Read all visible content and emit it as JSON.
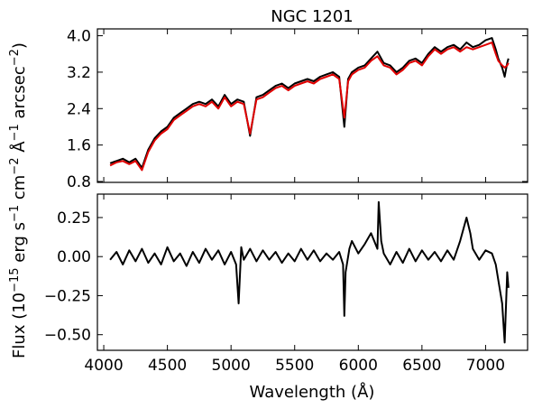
{
  "chart_data": [
    {
      "type": "line",
      "title": "NGC 1201",
      "xlim": [
        3950,
        7330
      ],
      "ylim": [
        0.78,
        4.15
      ],
      "yticks": [
        4.0,
        3.2,
        2.4,
        1.6,
        0.8
      ],
      "ytick_labels": [
        "4.0",
        "3.2",
        "2.4",
        "1.6",
        "0.8"
      ],
      "series": [
        {
          "color": "#000000",
          "points": [
            [
              4050,
              1.2
            ],
            [
              4100,
              1.25
            ],
            [
              4150,
              1.3
            ],
            [
              4200,
              1.22
            ],
            [
              4250,
              1.3
            ],
            [
              4300,
              1.1
            ],
            [
              4350,
              1.5
            ],
            [
              4400,
              1.75
            ],
            [
              4450,
              1.9
            ],
            [
              4500,
              2.0
            ],
            [
              4550,
              2.2
            ],
            [
              4600,
              2.3
            ],
            [
              4650,
              2.4
            ],
            [
              4700,
              2.5
            ],
            [
              4750,
              2.55
            ],
            [
              4800,
              2.5
            ],
            [
              4850,
              2.6
            ],
            [
              4900,
              2.45
            ],
            [
              4950,
              2.7
            ],
            [
              5000,
              2.5
            ],
            [
              5050,
              2.6
            ],
            [
              5100,
              2.55
            ],
            [
              5150,
              1.8
            ],
            [
              5200,
              2.65
            ],
            [
              5250,
              2.7
            ],
            [
              5300,
              2.8
            ],
            [
              5350,
              2.9
            ],
            [
              5400,
              2.95
            ],
            [
              5450,
              2.85
            ],
            [
              5500,
              2.95
            ],
            [
              5550,
              3.0
            ],
            [
              5600,
              3.05
            ],
            [
              5650,
              3.0
            ],
            [
              5700,
              3.1
            ],
            [
              5750,
              3.15
            ],
            [
              5800,
              3.2
            ],
            [
              5850,
              3.1
            ],
            [
              5890,
              2.0
            ],
            [
              5920,
              3.05
            ],
            [
              5950,
              3.2
            ],
            [
              6000,
              3.3
            ],
            [
              6050,
              3.35
            ],
            [
              6100,
              3.5
            ],
            [
              6150,
              3.65
            ],
            [
              6200,
              3.4
            ],
            [
              6250,
              3.35
            ],
            [
              6300,
              3.2
            ],
            [
              6350,
              3.3
            ],
            [
              6400,
              3.45
            ],
            [
              6450,
              3.5
            ],
            [
              6500,
              3.4
            ],
            [
              6550,
              3.6
            ],
            [
              6600,
              3.75
            ],
            [
              6650,
              3.65
            ],
            [
              6700,
              3.75
            ],
            [
              6750,
              3.8
            ],
            [
              6800,
              3.7
            ],
            [
              6850,
              3.85
            ],
            [
              6900,
              3.75
            ],
            [
              6950,
              3.8
            ],
            [
              7000,
              3.9
            ],
            [
              7050,
              3.95
            ],
            [
              7080,
              3.7
            ],
            [
              7100,
              3.5
            ],
            [
              7130,
              3.3
            ],
            [
              7150,
              3.1
            ],
            [
              7170,
              3.4
            ],
            [
              7180,
              3.5
            ]
          ]
        },
        {
          "color": "#e00000",
          "points": [
            [
              4050,
              1.15
            ],
            [
              4100,
              1.22
            ],
            [
              4150,
              1.25
            ],
            [
              4200,
              1.18
            ],
            [
              4250,
              1.25
            ],
            [
              4300,
              1.05
            ],
            [
              4350,
              1.45
            ],
            [
              4400,
              1.7
            ],
            [
              4450,
              1.85
            ],
            [
              4500,
              1.95
            ],
            [
              4550,
              2.15
            ],
            [
              4600,
              2.25
            ],
            [
              4650,
              2.35
            ],
            [
              4700,
              2.45
            ],
            [
              4750,
              2.5
            ],
            [
              4800,
              2.45
            ],
            [
              4850,
              2.55
            ],
            [
              4900,
              2.4
            ],
            [
              4950,
              2.65
            ],
            [
              5000,
              2.45
            ],
            [
              5050,
              2.55
            ],
            [
              5100,
              2.5
            ],
            [
              5150,
              1.85
            ],
            [
              5200,
              2.6
            ],
            [
              5250,
              2.65
            ],
            [
              5300,
              2.75
            ],
            [
              5350,
              2.85
            ],
            [
              5400,
              2.9
            ],
            [
              5450,
              2.8
            ],
            [
              5500,
              2.9
            ],
            [
              5550,
              2.95
            ],
            [
              5600,
              3.0
            ],
            [
              5650,
              2.95
            ],
            [
              5700,
              3.05
            ],
            [
              5750,
              3.1
            ],
            [
              5800,
              3.15
            ],
            [
              5850,
              3.05
            ],
            [
              5890,
              2.2
            ],
            [
              5920,
              3.0
            ],
            [
              5950,
              3.15
            ],
            [
              6000,
              3.25
            ],
            [
              6050,
              3.3
            ],
            [
              6100,
              3.45
            ],
            [
              6150,
              3.55
            ],
            [
              6200,
              3.35
            ],
            [
              6250,
              3.3
            ],
            [
              6300,
              3.15
            ],
            [
              6350,
              3.25
            ],
            [
              6400,
              3.4
            ],
            [
              6450,
              3.45
            ],
            [
              6500,
              3.35
            ],
            [
              6550,
              3.55
            ],
            [
              6600,
              3.7
            ],
            [
              6650,
              3.6
            ],
            [
              6700,
              3.7
            ],
            [
              6750,
              3.75
            ],
            [
              6800,
              3.65
            ],
            [
              6850,
              3.75
            ],
            [
              6900,
              3.7
            ],
            [
              6950,
              3.75
            ],
            [
              7000,
              3.8
            ],
            [
              7050,
              3.85
            ],
            [
              7080,
              3.6
            ],
            [
              7100,
              3.45
            ],
            [
              7130,
              3.35
            ],
            [
              7150,
              3.3
            ],
            [
              7170,
              3.35
            ],
            [
              7180,
              3.4
            ]
          ]
        }
      ]
    },
    {
      "type": "line",
      "title": "",
      "xlabel": "Wavelength ($\\AA$)",
      "xlim": [
        3950,
        7330
      ],
      "ylim": [
        -0.6,
        0.4
      ],
      "xticks": [
        4000,
        4500,
        5000,
        5500,
        6000,
        6500,
        7000
      ],
      "xtick_labels": [
        "4000",
        "4500",
        "5000",
        "5500",
        "6000",
        "6500",
        "7000"
      ],
      "yticks": [
        0.25,
        0.0,
        -0.25,
        -0.5
      ],
      "ytick_labels": [
        "0.25",
        "0.00",
        "−0.25",
        "−0.50"
      ],
      "series": [
        {
          "color": "#000000",
          "points": [
            [
              4050,
              -0.02
            ],
            [
              4100,
              0.03
            ],
            [
              4150,
              -0.05
            ],
            [
              4200,
              0.04
            ],
            [
              4250,
              -0.03
            ],
            [
              4300,
              0.05
            ],
            [
              4350,
              -0.04
            ],
            [
              4400,
              0.02
            ],
            [
              4450,
              -0.05
            ],
            [
              4500,
              0.06
            ],
            [
              4550,
              -0.03
            ],
            [
              4600,
              0.02
            ],
            [
              4650,
              -0.06
            ],
            [
              4700,
              0.03
            ],
            [
              4750,
              -0.04
            ],
            [
              4800,
              0.05
            ],
            [
              4850,
              -0.02
            ],
            [
              4900,
              0.04
            ],
            [
              4950,
              -0.05
            ],
            [
              5000,
              0.03
            ],
            [
              5040,
              -0.05
            ],
            [
              5060,
              -0.3
            ],
            [
              5080,
              0.06
            ],
            [
              5100,
              -0.02
            ],
            [
              5150,
              0.05
            ],
            [
              5200,
              -0.03
            ],
            [
              5250,
              0.04
            ],
            [
              5300,
              -0.02
            ],
            [
              5350,
              0.03
            ],
            [
              5400,
              -0.04
            ],
            [
              5450,
              0.02
            ],
            [
              5500,
              -0.03
            ],
            [
              5550,
              0.05
            ],
            [
              5600,
              -0.02
            ],
            [
              5650,
              0.04
            ],
            [
              5700,
              -0.03
            ],
            [
              5750,
              0.02
            ],
            [
              5800,
              -0.02
            ],
            [
              5850,
              0.03
            ],
            [
              5880,
              -0.05
            ],
            [
              5890,
              -0.38
            ],
            [
              5900,
              -0.1
            ],
            [
              5930,
              0.05
            ],
            [
              5950,
              0.1
            ],
            [
              6000,
              0.02
            ],
            [
              6050,
              0.08
            ],
            [
              6100,
              0.15
            ],
            [
              6150,
              0.05
            ],
            [
              6160,
              0.35
            ],
            [
              6180,
              0.1
            ],
            [
              6200,
              0.02
            ],
            [
              6250,
              -0.05
            ],
            [
              6300,
              0.03
            ],
            [
              6350,
              -0.04
            ],
            [
              6400,
              0.05
            ],
            [
              6450,
              -0.03
            ],
            [
              6500,
              0.04
            ],
            [
              6550,
              -0.02
            ],
            [
              6600,
              0.03
            ],
            [
              6650,
              -0.03
            ],
            [
              6700,
              0.04
            ],
            [
              6750,
              -0.02
            ],
            [
              6800,
              0.1
            ],
            [
              6850,
              0.25
            ],
            [
              6880,
              0.15
            ],
            [
              6900,
              0.05
            ],
            [
              6950,
              -0.02
            ],
            [
              7000,
              0.04
            ],
            [
              7050,
              0.02
            ],
            [
              7080,
              -0.05
            ],
            [
              7100,
              -0.15
            ],
            [
              7130,
              -0.3
            ],
            [
              7150,
              -0.55
            ],
            [
              7170,
              -0.1
            ],
            [
              7180,
              -0.2
            ]
          ]
        }
      ]
    }
  ],
  "ylabel": "Flux (10$^{-15}$ erg s$^{-1}$ cm$^{-2}$ $\\AA^{-1}$ arcsec$^{-2}$)"
}
